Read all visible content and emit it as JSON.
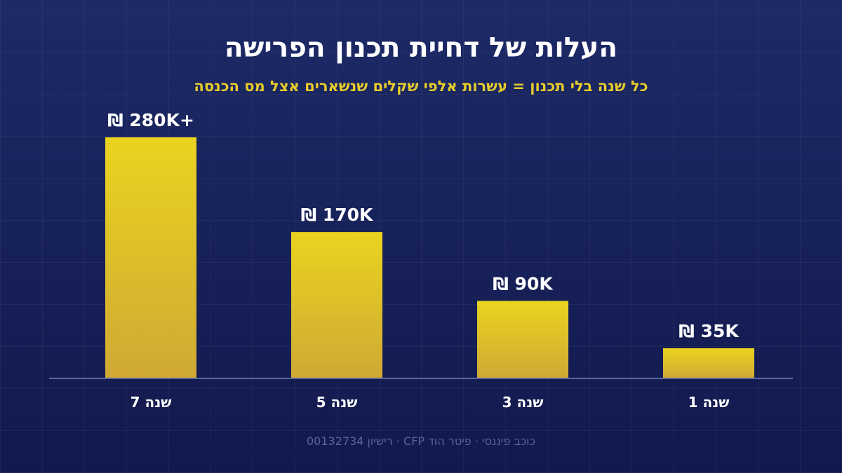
{
  "title": "העלות של דחיית תכנון הפרישה",
  "subtitle": "כל שנה בלי תכנון = עשרות אלפי שקלים שנשארים אצל מס הכנסה",
  "footer": "כוכב פיננסי · פיטר הוד CFP · רישיון 00132734",
  "colors": {
    "background_top": "#1d2a66",
    "background_bottom": "#12194d",
    "subtitle": "#e8cc2a",
    "bar_top": "#ead41f",
    "bar_bottom": "#cfa935",
    "baseline": "#5c6a9e",
    "label_text": "#ffffff",
    "footer_text": "#5a6594"
  },
  "chart_data": {
    "type": "bar",
    "categories": [
      "שנה 7",
      "שנה 5",
      "שנה 3",
      "שנה 1"
    ],
    "values": [
      280000,
      170000,
      90000,
      35000
    ],
    "data_labels": [
      "₪ 280K+",
      "₪ 170K",
      "₪ 90K",
      "₪ 35K"
    ],
    "title": "העלות של דחיית תכנון הפרישה",
    "subtitle": "כל שנה בלי תכנון = עשרות אלפי שקלים שנשארים אצל מס הכנסה",
    "xlabel": "",
    "ylabel": "",
    "ylim": [
      0,
      280000
    ],
    "grid": false,
    "legend": "none"
  }
}
